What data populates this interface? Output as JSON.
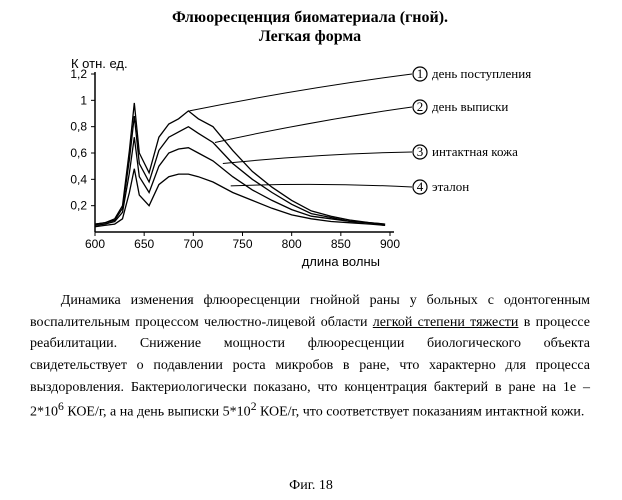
{
  "chart": {
    "type": "line",
    "title_line1": "Флюоресценция биоматериала (гной).",
    "title_line2": "Легкая форма",
    "y_title": "К   отн. ед.",
    "x_title": "длина волны",
    "xlim": [
      600,
      900
    ],
    "ylim": [
      0,
      1.2
    ],
    "xtick_step": 50,
    "ytick_step": 0.2,
    "xticks": [
      "600",
      "650",
      "700",
      "750",
      "800",
      "850",
      "900"
    ],
    "yticks": [
      "0,2",
      "0,4",
      "0,6",
      "0,8",
      "1",
      "1,2"
    ],
    "background_color": "#ffffff",
    "axis_color": "#000000",
    "line_color": "#000000",
    "line_width": 1.3,
    "legend": [
      {
        "num": "1",
        "label": "день поступления"
      },
      {
        "num": "2",
        "label": "день выписки"
      },
      {
        "num": "3",
        "label": "интактная кожа"
      },
      {
        "num": "4",
        "label": "эталон"
      }
    ],
    "series": {
      "s1": {
        "x": [
          600,
          610,
          620,
          628,
          635,
          640,
          645,
          655,
          665,
          675,
          685,
          695,
          705,
          720,
          740,
          760,
          780,
          800,
          820,
          840,
          860,
          880,
          895
        ],
        "y": [
          0.06,
          0.07,
          0.1,
          0.2,
          0.62,
          0.98,
          0.6,
          0.45,
          0.72,
          0.82,
          0.86,
          0.92,
          0.86,
          0.8,
          0.62,
          0.46,
          0.34,
          0.24,
          0.16,
          0.12,
          0.09,
          0.07,
          0.06
        ]
      },
      "s2": {
        "x": [
          600,
          610,
          620,
          628,
          635,
          640,
          645,
          655,
          665,
          675,
          685,
          695,
          705,
          720,
          740,
          760,
          780,
          800,
          820,
          840,
          860,
          880,
          895
        ],
        "y": [
          0.06,
          0.07,
          0.09,
          0.18,
          0.55,
          0.88,
          0.52,
          0.38,
          0.62,
          0.72,
          0.76,
          0.8,
          0.75,
          0.68,
          0.52,
          0.4,
          0.3,
          0.21,
          0.14,
          0.11,
          0.08,
          0.07,
          0.06
        ]
      },
      "s3": {
        "x": [
          600,
          610,
          620,
          628,
          635,
          640,
          645,
          655,
          665,
          675,
          685,
          695,
          705,
          720,
          740,
          760,
          780,
          800,
          820,
          840,
          860,
          880,
          895
        ],
        "y": [
          0.05,
          0.06,
          0.08,
          0.15,
          0.45,
          0.72,
          0.42,
          0.3,
          0.5,
          0.6,
          0.63,
          0.64,
          0.6,
          0.54,
          0.42,
          0.32,
          0.24,
          0.17,
          0.12,
          0.1,
          0.08,
          0.07,
          0.05
        ]
      },
      "s4": {
        "x": [
          600,
          610,
          620,
          628,
          635,
          640,
          645,
          655,
          665,
          675,
          685,
          695,
          705,
          720,
          740,
          760,
          780,
          800,
          820,
          840,
          860,
          880,
          895
        ],
        "y": [
          0.04,
          0.05,
          0.06,
          0.1,
          0.3,
          0.48,
          0.28,
          0.2,
          0.36,
          0.42,
          0.44,
          0.44,
          0.42,
          0.38,
          0.3,
          0.24,
          0.18,
          0.13,
          0.1,
          0.08,
          0.07,
          0.06,
          0.05
        ]
      }
    },
    "callout_origins": {
      "s1": [
        696,
        0.92
      ],
      "s2": [
        722,
        0.68
      ],
      "s3": [
        730,
        0.52
      ],
      "s4": [
        738,
        0.35
      ]
    }
  },
  "paragraph": {
    "p1a": "Динамика изменения флюоресценции гнойной раны у больных с одонтогенным воспалительным процессом челюстно-лицевой области ",
    "p1u": "легкой степени тяжести",
    "p1b": " в процессе реабилитации. Снижение мощности флюоресценции биологического объекта свидетельствует о подавлении роста микробов в ране, что характерно для процесса выздоровления. Бактериологически показано, что концентрация бактерий в ране на 1е – 2*10",
    "exp1": "6",
    "p1c": " КОЕ/г, а на день выписки 5*10",
    "exp2": "2",
    "p1d": " КОЕ/г, что соответствует показаниям интактной кожи."
  },
  "figure_caption": "Фиг. 18"
}
